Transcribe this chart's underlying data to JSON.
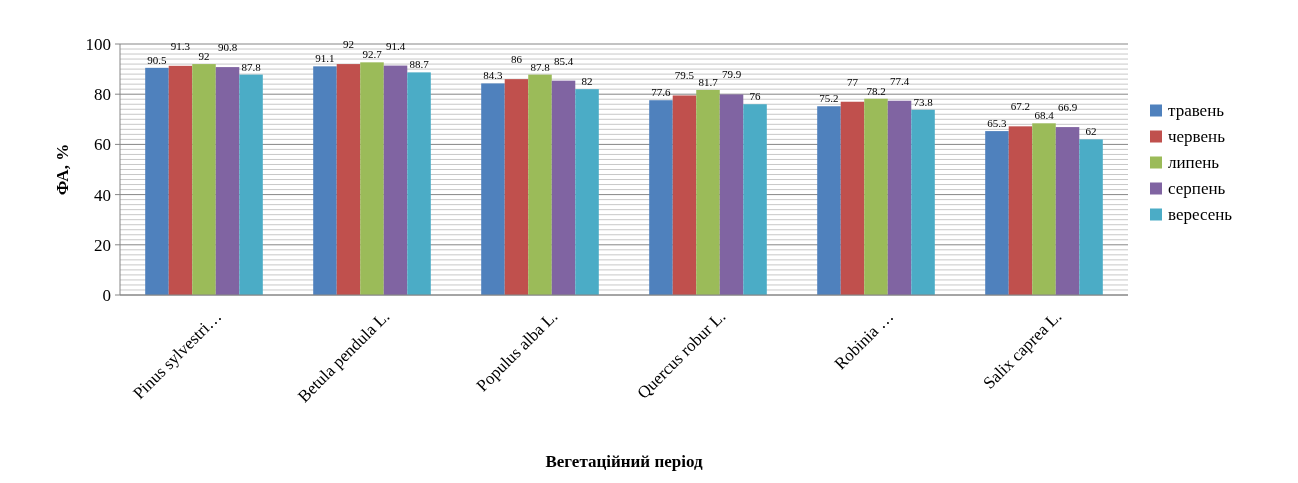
{
  "chart_data": {
    "type": "bar",
    "xlabel": "Вегетаційний період",
    "ylabel": "ФА, %",
    "categories": [
      "Pinus sylvestri…",
      "Betula pendula L.",
      "Populus alba L.",
      "Quercus robur L.",
      "Robinia …",
      "Salix caprea L."
    ],
    "series": [
      {
        "name": "травень",
        "color": "#4f81bd",
        "values": [
          90.5,
          91.1,
          84.3,
          77.6,
          75.2,
          65.3
        ]
      },
      {
        "name": "червень",
        "color": "#c0504d",
        "values": [
          91.3,
          92,
          86,
          79.5,
          77,
          67.2
        ]
      },
      {
        "name": "липень",
        "color": "#9bbb59",
        "values": [
          92,
          92.7,
          87.8,
          81.7,
          78.2,
          68.4
        ]
      },
      {
        "name": "серпень",
        "color": "#8064a2",
        "values": [
          90.8,
          91.4,
          85.4,
          79.9,
          77.4,
          66.9
        ]
      },
      {
        "name": "вересень",
        "color": "#4bacc6",
        "values": [
          87.8,
          88.7,
          82,
          76,
          73.8,
          62
        ]
      }
    ],
    "ylim": [
      0,
      100
    ],
    "yticks": [
      0,
      {
        "value": 2,
        "label": null
      },
      {
        "value": 4,
        "label": null
      },
      {
        "value": 6,
        "label": null
      },
      {
        "value": 8,
        "label": null
      },
      {
        "value": 10,
        "label": null
      },
      {
        "value": 12,
        "label": null
      },
      {
        "value": 14,
        "label": null
      },
      {
        "value": 16,
        "label": null
      },
      {
        "value": 18,
        "label": null
      },
      20,
      {
        "value": 22,
        "label": null
      },
      {
        "value": 24,
        "label": null
      },
      {
        "value": 26,
        "label": null
      },
      {
        "value": 28,
        "label": null
      },
      {
        "value": 30,
        "label": null
      },
      {
        "value": 32,
        "label": null
      },
      {
        "value": 34,
        "label": null
      },
      {
        "value": 36,
        "label": null
      },
      {
        "value": 38,
        "label": null
      },
      40,
      {
        "value": 42,
        "label": null
      },
      {
        "value": 44,
        "label": null
      },
      {
        "value": 46,
        "label": null
      },
      {
        "value": 48,
        "label": null
      },
      {
        "value": 50,
        "label": null
      },
      {
        "value": 52,
        "label": null
      },
      {
        "value": 54,
        "label": null
      },
      {
        "value": 56,
        "label": null
      },
      {
        "value": 58,
        "label": null
      },
      60,
      {
        "value": 62,
        "label": null
      },
      {
        "value": 64,
        "label": null
      },
      {
        "value": 66,
        "label": null
      },
      {
        "value": 68,
        "label": null
      },
      {
        "value": 70,
        "label": null
      },
      {
        "value": 72,
        "label": null
      },
      {
        "value": 74,
        "label": null
      },
      {
        "value": 76,
        "label": null
      },
      {
        "value": 78,
        "label": null
      },
      80,
      {
        "value": 82,
        "label": null
      },
      {
        "value": 84,
        "label": null
      },
      {
        "value": 86,
        "label": null
      },
      {
        "value": 88,
        "label": null
      },
      {
        "value": 90,
        "label": null
      },
      {
        "value": 92,
        "label": null
      },
      {
        "value": 94,
        "label": null
      },
      {
        "value": 96,
        "label": null
      },
      {
        "value": 98,
        "label": null
      },
      100
    ],
    "grid": "y",
    "legend": "right",
    "data_labels": true
  }
}
